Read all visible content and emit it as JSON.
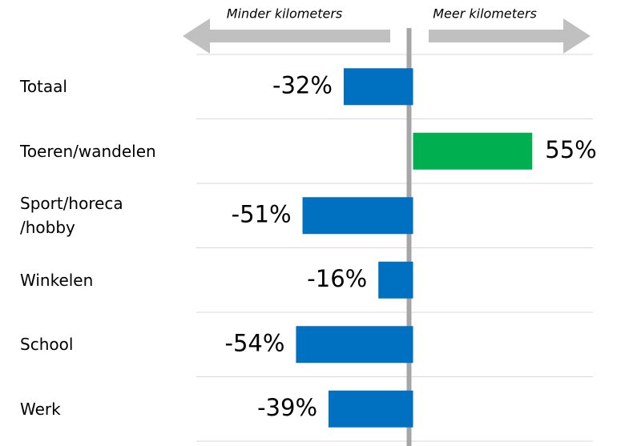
{
  "chart_data": {
    "type": "bar",
    "orientation": "horizontal",
    "annotations": [
      "Minder kilometers",
      "Meer kilometers"
    ],
    "categories": [
      "Totaal",
      "Toeren/wandelen",
      "Sport/horeca\n/hobby",
      "Winkelen",
      "School",
      "Werk"
    ],
    "values": [
      -32,
      55,
      -51,
      -16,
      -54,
      -39
    ],
    "value_labels": [
      "-32%",
      "55%",
      "-51%",
      "-16%",
      "-54%",
      "-39%"
    ],
    "colors": [
      "#0070c0",
      "#00b050",
      "#0070c0",
      "#0070c0",
      "#0070c0",
      "#0070c0"
    ],
    "xlim": [
      -100,
      83
    ],
    "grid": true
  }
}
